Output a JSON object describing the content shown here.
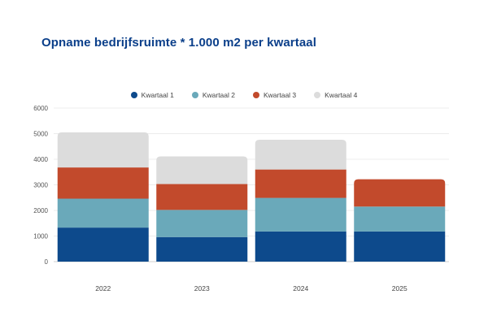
{
  "chart_data": {
    "type": "bar",
    "stacked": true,
    "title": "Opname bedrijfsruimte * 1.000 m2 per kwartaal",
    "categories": [
      "2022",
      "2023",
      "2024",
      "2025"
    ],
    "series": [
      {
        "name": "Kwartaal 1",
        "color": "#0d4a8c",
        "values": [
          1330,
          960,
          1180,
          1180
        ]
      },
      {
        "name": "Kwartaal 2",
        "color": "#6aa9ba",
        "values": [
          1130,
          1060,
          1310,
          970
        ]
      },
      {
        "name": "Kwartaal 3",
        "color": "#c24a2c",
        "values": [
          1220,
          1010,
          1110,
          1070
        ]
      },
      {
        "name": "Kwartaal 4",
        "color": "#dcdcdc",
        "values": [
          1370,
          1080,
          1160,
          0
        ]
      }
    ],
    "yticks": [
      "0",
      "1000",
      "2000",
      "3000",
      "4000",
      "5000",
      "6000"
    ],
    "ylim": [
      0,
      6000
    ],
    "legend_position": "top-center",
    "grid": true
  }
}
